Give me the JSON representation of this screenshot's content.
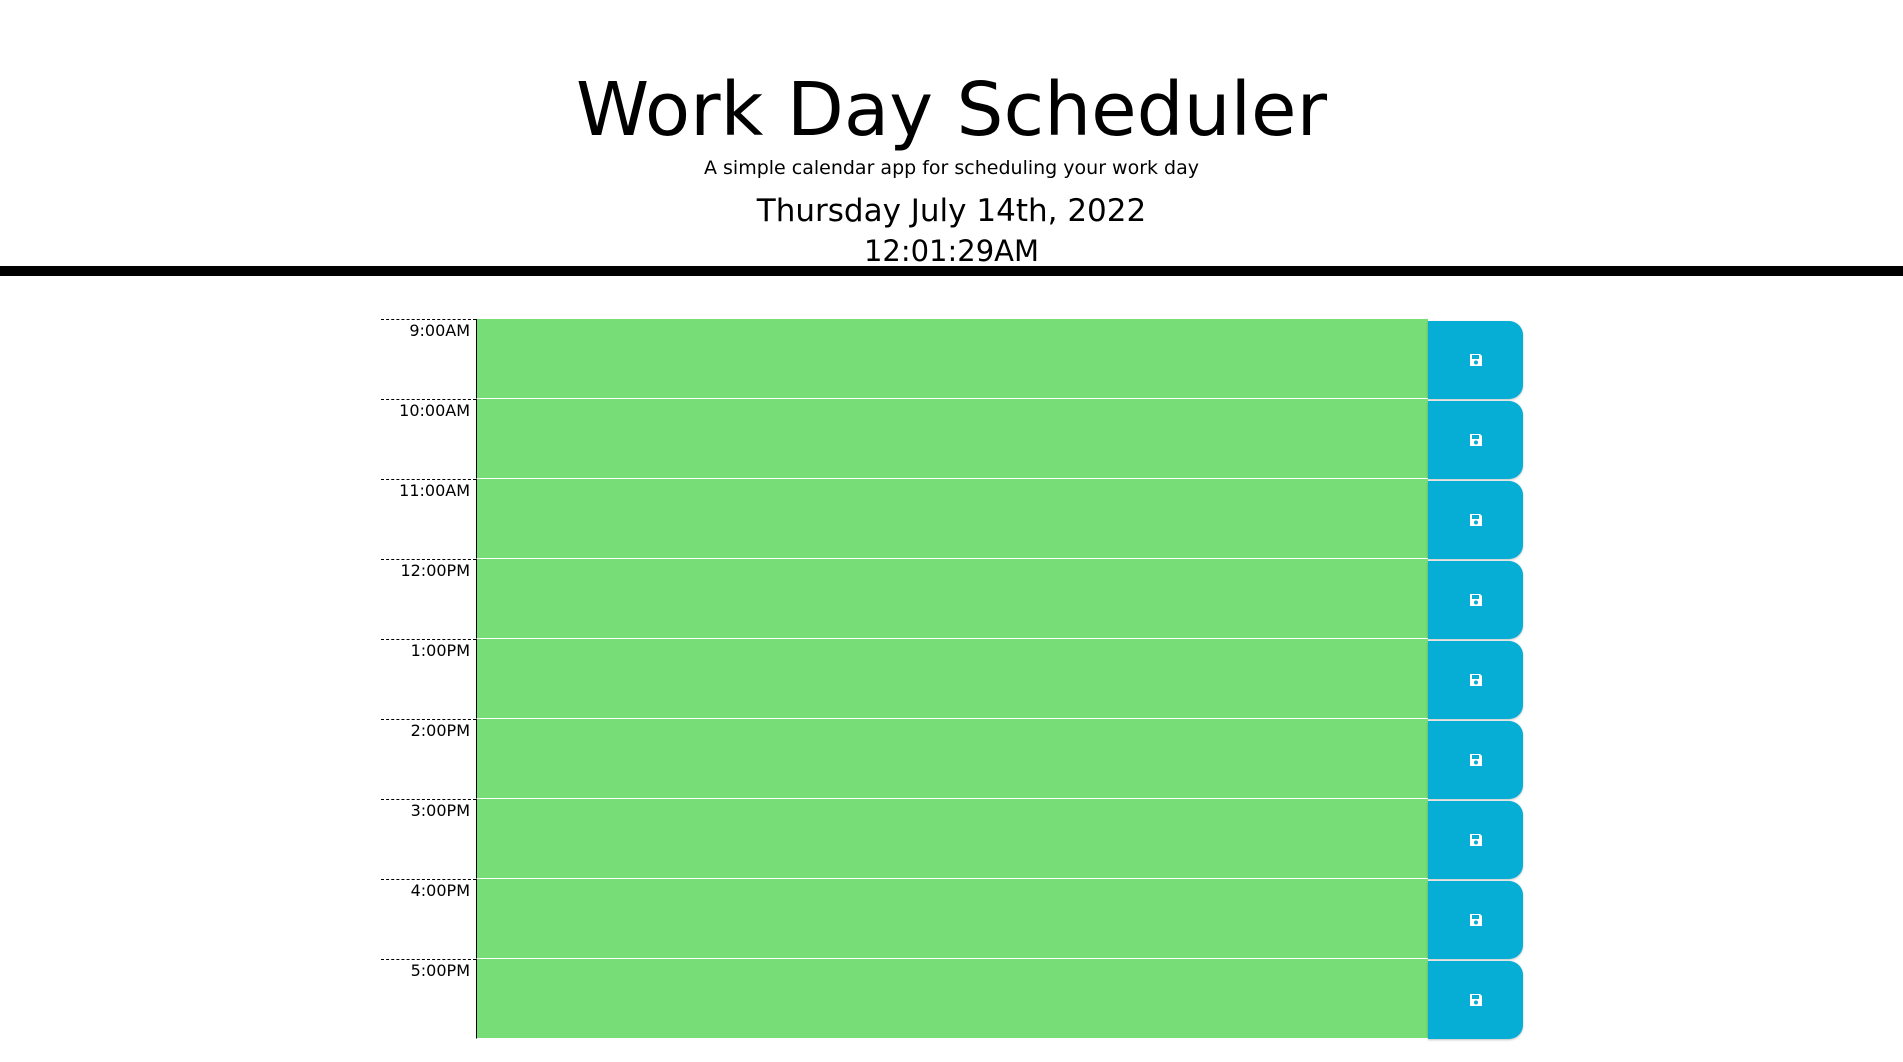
{
  "header": {
    "title": "Work Day Scheduler",
    "subtitle": "A simple calendar app for scheduling your work day",
    "current_day": "Thursday July 14th, 2022",
    "current_time": "12:01:29AM"
  },
  "colors": {
    "future_block": "#77dd77",
    "save_button": "#06aed5",
    "header_border": "#000000"
  },
  "time_blocks": [
    {
      "hour": "9:00AM",
      "text": "",
      "save_icon": "save-icon"
    },
    {
      "hour": "10:00AM",
      "text": "",
      "save_icon": "save-icon"
    },
    {
      "hour": "11:00AM",
      "text": "",
      "save_icon": "save-icon"
    },
    {
      "hour": "12:00PM",
      "text": "",
      "save_icon": "save-icon"
    },
    {
      "hour": "1:00PM",
      "text": "",
      "save_icon": "save-icon"
    },
    {
      "hour": "2:00PM",
      "text": "",
      "save_icon": "save-icon"
    },
    {
      "hour": "3:00PM",
      "text": "",
      "save_icon": "save-icon"
    },
    {
      "hour": "4:00PM",
      "text": "",
      "save_icon": "save-icon"
    },
    {
      "hour": "5:00PM",
      "text": "",
      "save_icon": "save-icon"
    }
  ]
}
